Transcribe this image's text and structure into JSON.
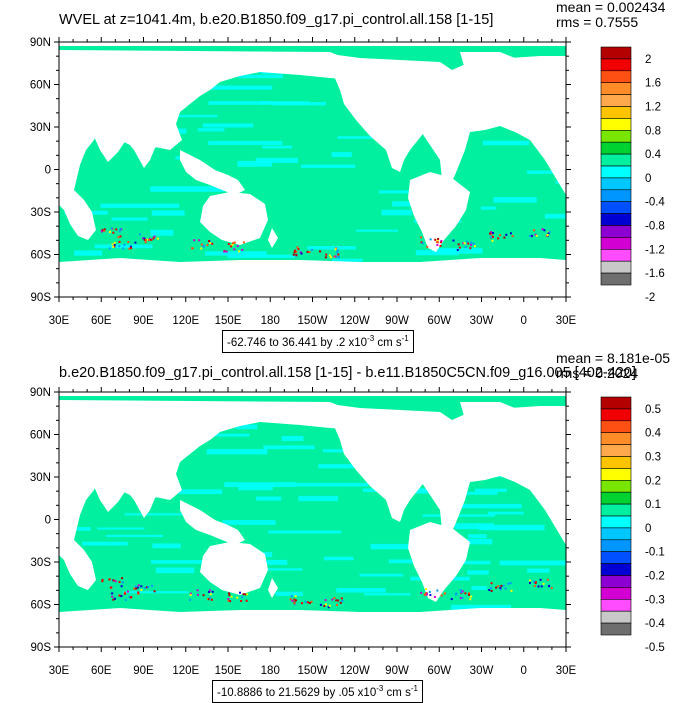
{
  "panels": [
    {
      "title": "WVEL at z=1041.4m, b.e20.B1850.f09_g17.pi_control.all.158 [1-15]",
      "stats": {
        "mean": "mean = 0.002434",
        "rms": "rms = 0.7555"
      },
      "range_note": {
        "text": "-62.746 to 36.441 by .2 x10",
        "exp": "-3",
        "unit": " cm s",
        "unit_exp": "-1"
      },
      "colorbar": {
        "labels": [
          "2",
          "1.6",
          "1.2",
          "0.8",
          "0.4",
          "0",
          "-0.4",
          "-0.8",
          "-1.2",
          "-1.6",
          "-2"
        ],
        "colors": [
          "#b40000",
          "#f00000",
          "#ff5014",
          "#ff8c28",
          "#ffa84c",
          "#ffc400",
          "#ffff00",
          "#78e600",
          "#00d232",
          "#00f0a0",
          "#00ffff",
          "#00c8ff",
          "#0096ff",
          "#0050ff",
          "#0000d2",
          "#8c00d2",
          "#d200d2",
          "#ff4cff",
          "#c8c8c8",
          "#6e6e6e"
        ]
      }
    },
    {
      "title": "b.e20.B1850.f09_g17.pi_control.all.158 [1-15] - b.e11.B1850C5CN.f09_g16.005 [402-420]",
      "stats": {
        "mean": "mean = 8.181e-05",
        "rms": "rms = 0.2024"
      },
      "range_note": {
        "text": "-10.8886 to 21.5629 by .05 x10",
        "exp": "-3",
        "unit": " cm s",
        "unit_exp": "-1"
      },
      "colorbar": {
        "labels": [
          "0.5",
          "0.4",
          "0.3",
          "0.2",
          "0.1",
          "0",
          "-0.1",
          "-0.2",
          "-0.3",
          "-0.4",
          "-0.5"
        ],
        "colors": [
          "#b40000",
          "#f00000",
          "#ff5014",
          "#ff8c28",
          "#ffa84c",
          "#ffc400",
          "#ffff00",
          "#78e600",
          "#00d232",
          "#00f0a0",
          "#00ffff",
          "#00c8ff",
          "#0096ff",
          "#0050ff",
          "#0000d2",
          "#8c00d2",
          "#d200d2",
          "#ff4cff",
          "#c8c8c8",
          "#6e6e6e"
        ]
      }
    }
  ],
  "axes": {
    "lat_labels": [
      "90N",
      "60N",
      "30N",
      "0",
      "30S",
      "60S",
      "90S"
    ],
    "lon_labels": [
      "30E",
      "60E",
      "90E",
      "120E",
      "150E",
      "180",
      "150W",
      "120W",
      "90W",
      "60W",
      "30W",
      "0",
      "30E"
    ]
  },
  "colors": {
    "ocean": "#00f0a0",
    "ocean_light": "#00ffff",
    "land": "#ffffff",
    "frame": "#000000"
  }
}
